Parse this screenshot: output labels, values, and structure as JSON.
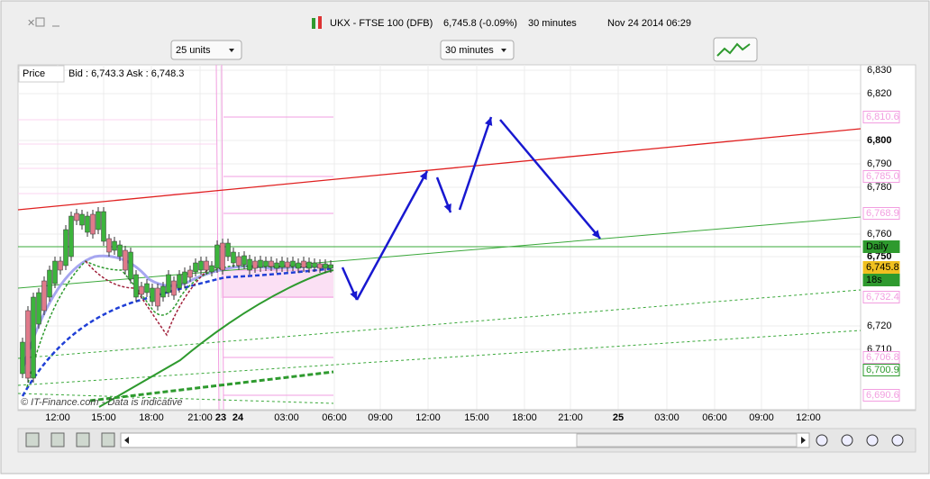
{
  "window": {
    "title": "UKX - FTSE 100 (DFB)",
    "price": "6,745.8 (-0.09%)",
    "interval": "30 minutes",
    "date": "Nov 24 2014 06:29"
  },
  "toolbar": {
    "units": "25 units",
    "timeframe": "30 minutes"
  },
  "chart": {
    "legend": "Price",
    "quote": "Bid : 6,743.3 Ask : 6,748.3",
    "copyright": "© IT-Finance.com - Data is indicative",
    "price_axis": [
      "6,830",
      "6,820",
      "6,800",
      "6,790",
      "6,780",
      "6,760",
      "6,750",
      "6,720",
      "6,710"
    ],
    "price_tags": [
      {
        "label": "6,810.6",
        "color": "#f29ee0"
      },
      {
        "label": "6,785.0",
        "color": "#f29ee0"
      },
      {
        "label": "6,768.9",
        "color": "#f29ee0"
      },
      {
        "label": "Daily",
        "color": "#2e9a2e"
      },
      {
        "label": "6,745.8",
        "color": "#f0c020"
      },
      {
        "label": "18s",
        "color": "#2e9a2e"
      },
      {
        "label": "6,732.4",
        "color": "#f29ee0"
      },
      {
        "label": "6,706.8",
        "color": "#f29ee0"
      },
      {
        "label": "6,700.9",
        "color": "#2e9a2e"
      },
      {
        "label": "6,690.6",
        "color": "#f29ee0"
      }
    ],
    "time_axis": [
      "12:00",
      "15:00",
      "18:00",
      "21:00",
      "23",
      "24",
      "03:00",
      "06:00",
      "09:00",
      "12:00",
      "15:00",
      "18:00",
      "21:00",
      "25",
      "03:00",
      "06:00",
      "09:00",
      "12:00"
    ]
  }
}
